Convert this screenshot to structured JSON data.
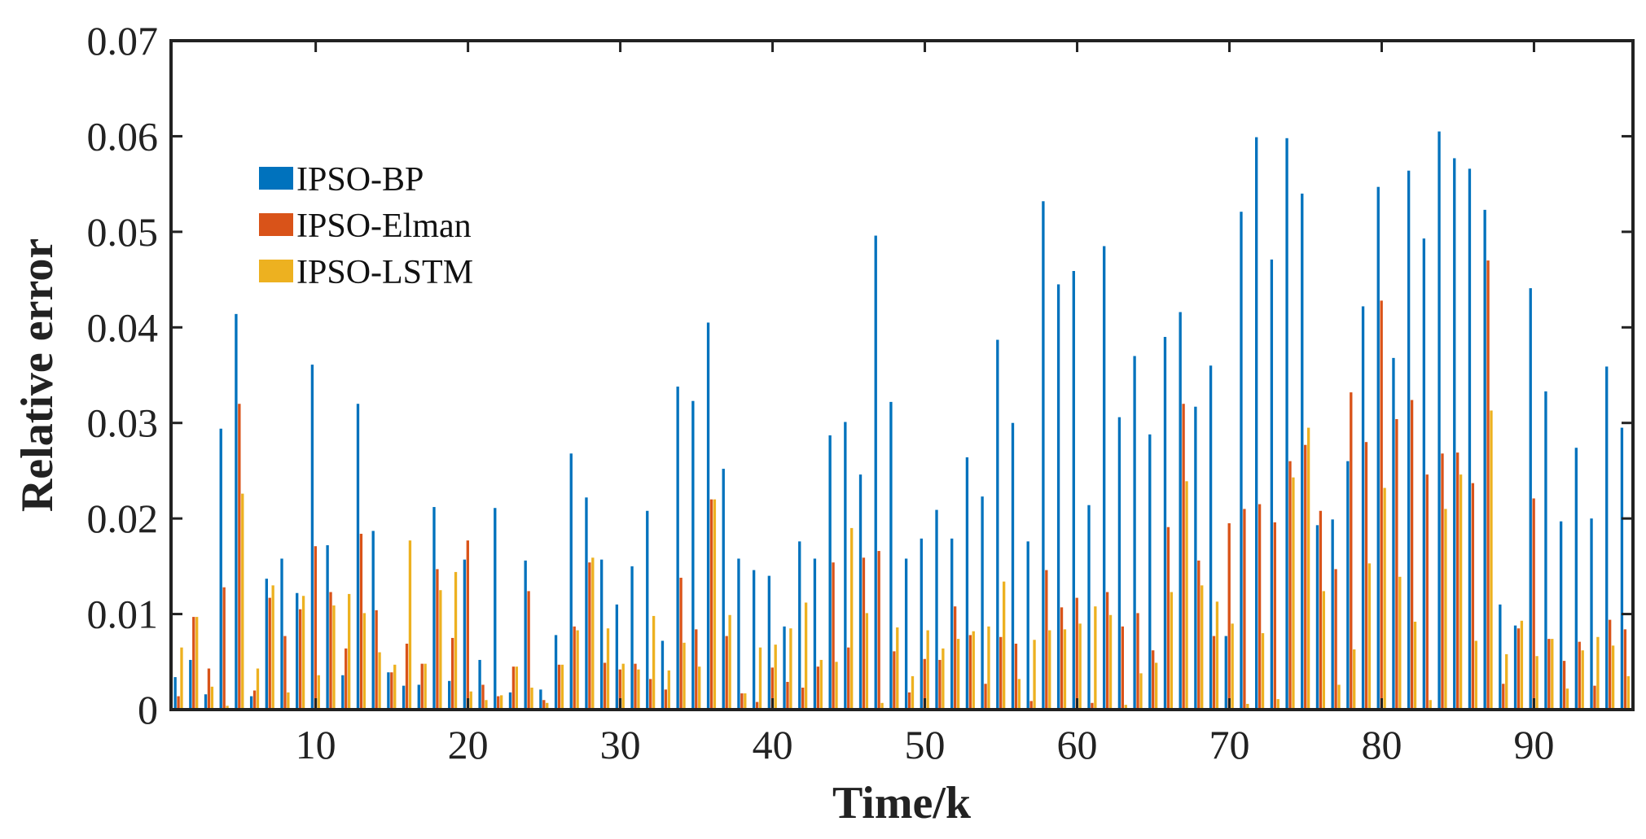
{
  "chart_data": {
    "type": "bar",
    "xlabel": "Time/k",
    "ylabel": "Relative error",
    "xlim": [
      0.5,
      96.5
    ],
    "ylim": [
      0,
      0.07
    ],
    "xticks": [
      10,
      20,
      30,
      40,
      50,
      60,
      70,
      80,
      90
    ],
    "yticks": [
      0,
      0.01,
      0.02,
      0.03,
      0.04,
      0.05,
      0.06,
      0.07
    ],
    "ytick_labels": [
      "0",
      "0.01",
      "0.02",
      "0.03",
      "0.04",
      "0.05",
      "0.06",
      "0.07"
    ],
    "legend_position": "upper-left",
    "grid": false,
    "series": [
      {
        "name": "IPSO-BP",
        "color": "#0072BD",
        "values": [
          0.0034,
          0.0052,
          0.0016,
          0.0294,
          0.0414,
          0.0014,
          0.0137,
          0.0158,
          0.0122,
          0.0361,
          0.0172,
          0.0036,
          0.032,
          0.0187,
          0.0039,
          0.0025,
          0.0026,
          0.0212,
          0.003,
          0.0157,
          0.0052,
          0.0211,
          0.0018,
          0.0156,
          0.0021,
          0.0078,
          0.0268,
          0.0222,
          0.0157,
          0.011,
          0.015,
          0.0208,
          0.0072,
          0.0338,
          0.0323,
          0.0405,
          0.0252,
          0.0158,
          0.0146,
          0.014,
          0.0087,
          0.0176,
          0.0158,
          0.0287,
          0.0301,
          0.0246,
          0.0496,
          0.0322,
          0.0158,
          0.0179,
          0.0209,
          0.0179,
          0.0264,
          0.0223,
          0.0387,
          0.03,
          0.0176,
          0.0532,
          0.0445,
          0.0459,
          0.0214,
          0.0485,
          0.0306,
          0.037,
          0.0288,
          0.039,
          0.0416,
          0.0317,
          0.036,
          0.0077,
          0.0521,
          0.0599,
          0.0471,
          0.0598,
          0.054,
          0.0193,
          0.0199,
          0.026,
          0.0422,
          0.0547,
          0.0368,
          0.0564,
          0.0493,
          0.0605,
          0.0577,
          0.0566,
          0.0523,
          0.011,
          0.0088,
          0.0441,
          0.0333,
          0.0197,
          0.0274,
          0.02,
          0.0359,
          0.0295
        ]
      },
      {
        "name": "IPSO-Elman",
        "color": "#D95319",
        "values": [
          0.0014,
          0.0097,
          0.0043,
          0.0128,
          0.032,
          0.002,
          0.0117,
          0.0077,
          0.0105,
          0.0171,
          0.0123,
          0.0064,
          0.0184,
          0.0104,
          0.0039,
          0.0069,
          0.0048,
          0.0147,
          0.0075,
          0.0177,
          0.0026,
          0.0014,
          0.0045,
          0.0124,
          0.001,
          0.0047,
          0.0087,
          0.0154,
          0.0049,
          0.0042,
          0.0048,
          0.0032,
          0.0021,
          0.0138,
          0.0084,
          0.022,
          0.0077,
          0.0017,
          0.0008,
          0.0044,
          0.0029,
          0.0023,
          0.0045,
          0.0154,
          0.0065,
          0.0159,
          0.0166,
          0.0061,
          0.0018,
          0.0053,
          0.0052,
          0.0108,
          0.0078,
          0.0027,
          0.0076,
          0.0069,
          0.0009,
          0.0146,
          0.0107,
          0.0117,
          0.0007,
          0.0123,
          0.0087,
          0.0101,
          0.0062,
          0.0191,
          0.032,
          0.0156,
          0.0077,
          0.0195,
          0.021,
          0.0215,
          0.0196,
          0.026,
          0.0277,
          0.0208,
          0.0147,
          0.0332,
          0.028,
          0.0428,
          0.0304,
          0.0324,
          0.0246,
          0.0268,
          0.0269,
          0.0237,
          0.047,
          0.0027,
          0.0085,
          0.0221,
          0.0074,
          0.0051,
          0.0071,
          0.0025,
          0.0094,
          0.0084
        ]
      },
      {
        "name": "IPSO-LSTM",
        "color": "#EDB120",
        "values": [
          0.0065,
          0.0097,
          0.0024,
          0.0004,
          0.0226,
          0.0043,
          0.013,
          0.0018,
          0.0119,
          0.0036,
          0.0109,
          0.0121,
          0.0101,
          0.006,
          0.0047,
          0.0177,
          0.0048,
          0.0125,
          0.0144,
          0.0019,
          0.001,
          0.0015,
          0.0045,
          0.0023,
          0.0007,
          0.0047,
          0.0083,
          0.0159,
          0.0085,
          0.0048,
          0.0042,
          0.0098,
          0.0041,
          0.007,
          0.0045,
          0.022,
          0.0099,
          0.0017,
          0.0065,
          0.0068,
          0.0085,
          0.0112,
          0.0052,
          0.005,
          0.019,
          0.0101,
          0.0007,
          0.0086,
          0.0035,
          0.0083,
          0.0064,
          0.0074,
          0.0082,
          0.0087,
          0.0134,
          0.0032,
          0.0073,
          0.0083,
          0.0084,
          0.009,
          0.0108,
          0.0099,
          0.0005,
          0.0038,
          0.0049,
          0.0123,
          0.0239,
          0.013,
          0.0113,
          0.009,
          0.0006,
          0.008,
          0.0011,
          0.0243,
          0.0295,
          0.0124,
          0.0026,
          0.0063,
          0.0153,
          0.0232,
          0.0139,
          0.0092,
          0.001,
          0.021,
          0.0246,
          0.0072,
          0.0313,
          0.0058,
          0.0093,
          0.0056,
          0.0074,
          0.0022,
          0.0062,
          0.0076,
          0.0067,
          0.0035
        ]
      }
    ]
  }
}
